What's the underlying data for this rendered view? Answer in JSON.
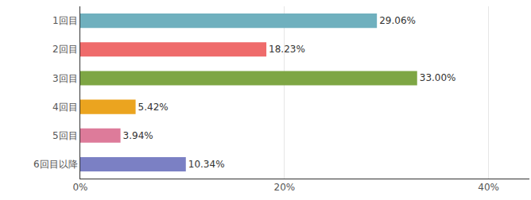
{
  "chart_data": {
    "type": "bar",
    "orientation": "horizontal",
    "categories": [
      "1回目",
      "2回目",
      "3回目",
      "4回目",
      "5回目",
      "6回目以降"
    ],
    "values": [
      29.06,
      18.23,
      33.0,
      5.42,
      3.94,
      10.34
    ],
    "value_labels": [
      "29.06%",
      "18.23%",
      "33.00%",
      "5.42%",
      "3.94%",
      "10.34%"
    ],
    "colors": [
      "#6fb0be",
      "#ef6b6b",
      "#7ea644",
      "#eba41f",
      "#dd7b9a",
      "#7b80c4"
    ],
    "xlim": [
      0,
      44
    ],
    "xticks": [
      {
        "value": 0,
        "label": "0%"
      },
      {
        "value": 20,
        "label": "20%"
      },
      {
        "value": 40,
        "label": "40%"
      }
    ],
    "grid": true,
    "data_labels": true
  }
}
